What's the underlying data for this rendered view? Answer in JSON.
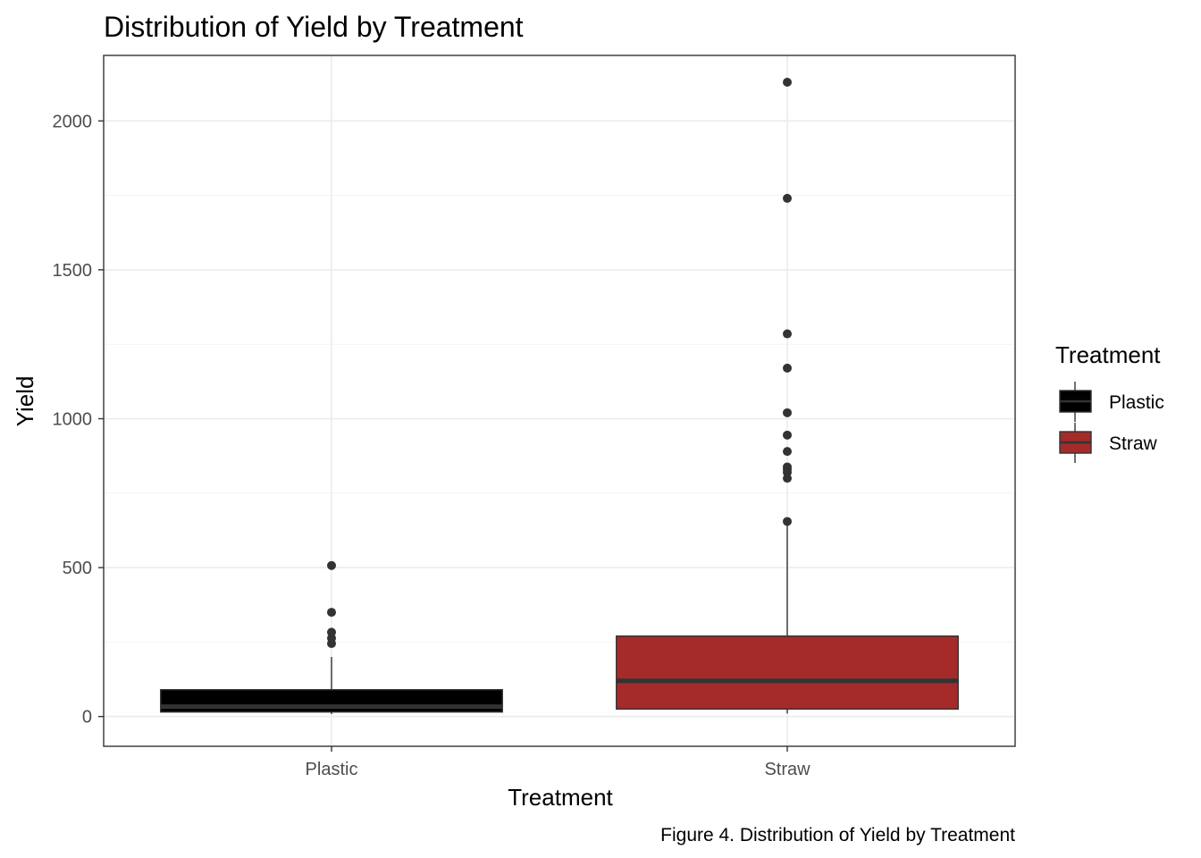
{
  "chart_data": {
    "type": "boxplot",
    "title": "Distribution of Yield by Treatment",
    "xlabel": "Treatment",
    "ylabel": "Yield",
    "ylim": [
      -100,
      2220
    ],
    "yticks": [
      0,
      500,
      1000,
      1500,
      2000
    ],
    "grid": true,
    "legend_position": "right",
    "legend_title": "Treatment",
    "caption": "Figure 4. Distribution of Yield by Treatment",
    "categories": [
      "Plastic",
      "Straw"
    ],
    "series": [
      {
        "name": "Plastic",
        "color": "#000000",
        "median_color": "#333333",
        "whisker_low": 8,
        "q1": 15,
        "median": 33,
        "q3": 90,
        "whisker_high": 200,
        "outliers": [
          245,
          263,
          283,
          350,
          507
        ]
      },
      {
        "name": "Straw",
        "color": "#a52a2a",
        "median_color": "#333333",
        "whisker_low": 10,
        "q1": 25,
        "median": 120,
        "q3": 270,
        "whisker_high": 650,
        "outliers": [
          655,
          800,
          820,
          830,
          838,
          890,
          945,
          1020,
          1170,
          1285,
          1740,
          2130
        ]
      }
    ]
  }
}
